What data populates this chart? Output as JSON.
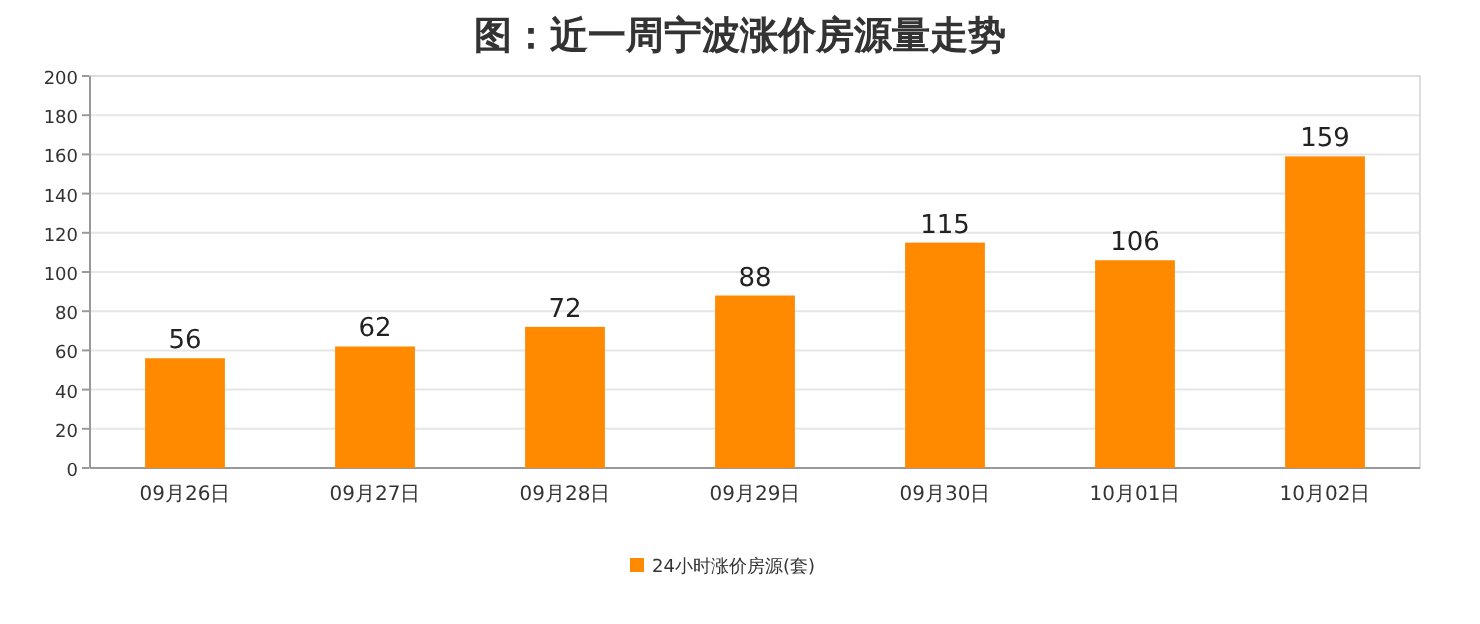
{
  "chart_data": {
    "type": "bar",
    "title": "图：近一周宁波涨价房源量走势",
    "categories": [
      "09月26日",
      "09月27日",
      "09月28日",
      "09月29日",
      "09月30日",
      "10月01日",
      "10月02日"
    ],
    "series": [
      {
        "name": "24小时涨价房源(套)",
        "color": "#ff8a00",
        "values": [
          56,
          62,
          72,
          88,
          115,
          106,
          159
        ]
      }
    ],
    "ylim": [
      0,
      200
    ],
    "yticks": [
      0,
      20,
      40,
      60,
      80,
      100,
      120,
      140,
      160,
      180,
      200
    ],
    "grid": "y",
    "legend": "bottom",
    "data_labels": true
  }
}
